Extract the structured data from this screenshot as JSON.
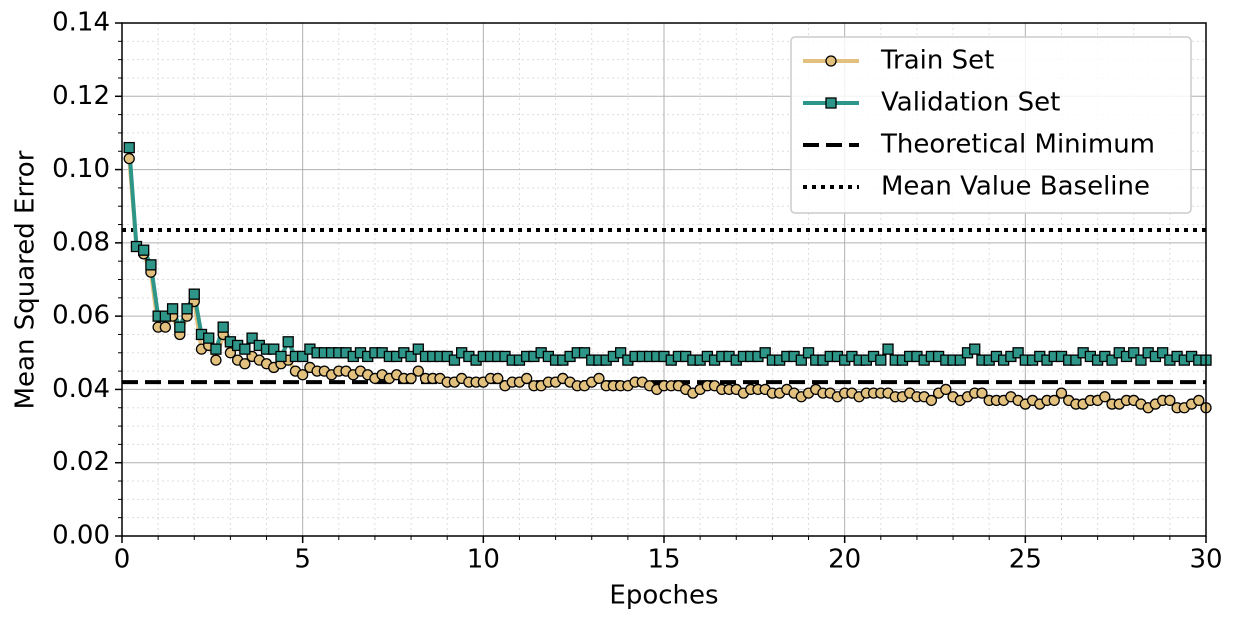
{
  "chart_data": {
    "type": "line",
    "xlabel": "Epoches",
    "ylabel": "Mean Squared Error",
    "x": [
      0.2,
      0.4,
      0.6,
      0.8,
      1.0,
      1.2,
      1.4,
      1.6,
      1.8,
      2.0,
      2.2,
      2.4,
      2.6,
      2.8,
      3.0,
      3.2,
      3.4,
      3.6,
      3.8,
      4.0,
      4.2,
      4.4,
      4.6,
      4.8,
      5.0,
      5.2,
      5.4,
      5.6,
      5.8,
      6.0,
      6.2,
      6.4,
      6.6,
      6.8,
      7.0,
      7.2,
      7.4,
      7.6,
      7.8,
      8.0,
      8.2,
      8.4,
      8.6,
      8.8,
      9.0,
      9.2,
      9.4,
      9.6,
      9.8,
      10.0,
      10.2,
      10.4,
      10.6,
      10.8,
      11.0,
      11.2,
      11.4,
      11.6,
      11.8,
      12.0,
      12.2,
      12.4,
      12.6,
      12.8,
      13.0,
      13.2,
      13.4,
      13.6,
      13.8,
      14.0,
      14.2,
      14.4,
      14.6,
      14.8,
      15.0,
      15.2,
      15.4,
      15.6,
      15.8,
      16.0,
      16.2,
      16.4,
      16.6,
      16.8,
      17.0,
      17.2,
      17.4,
      17.6,
      17.8,
      18.0,
      18.2,
      18.4,
      18.6,
      18.8,
      19.0,
      19.2,
      19.4,
      19.6,
      19.8,
      20.0,
      20.2,
      20.4,
      20.6,
      20.8,
      21.0,
      21.2,
      21.4,
      21.6,
      21.8,
      22.0,
      22.2,
      22.4,
      22.6,
      22.8,
      23.0,
      23.2,
      23.4,
      23.6,
      23.8,
      24.0,
      24.2,
      24.4,
      24.6,
      24.8,
      25.0,
      25.2,
      25.4,
      25.6,
      25.8,
      26.0,
      26.2,
      26.4,
      26.6,
      26.8,
      27.0,
      27.2,
      27.4,
      27.6,
      27.8,
      28.0,
      28.2,
      28.4,
      28.6,
      28.8,
      29.0,
      29.2,
      29.4,
      29.6,
      29.8,
      30.0
    ],
    "series": [
      {
        "name": "Train Set",
        "color": "#e2c07d",
        "marker": "circle",
        "values": [
          0.103,
          0.079,
          0.077,
          0.072,
          0.057,
          0.057,
          0.06,
          0.055,
          0.06,
          0.064,
          0.051,
          0.052,
          0.048,
          0.055,
          0.05,
          0.048,
          0.047,
          0.049,
          0.048,
          0.047,
          0.046,
          0.047,
          0.048,
          0.045,
          0.044,
          0.046,
          0.045,
          0.045,
          0.044,
          0.045,
          0.045,
          0.044,
          0.045,
          0.044,
          0.043,
          0.044,
          0.043,
          0.044,
          0.043,
          0.043,
          0.045,
          0.043,
          0.043,
          0.043,
          0.042,
          0.042,
          0.043,
          0.042,
          0.042,
          0.042,
          0.043,
          0.043,
          0.041,
          0.042,
          0.042,
          0.043,
          0.041,
          0.041,
          0.042,
          0.042,
          0.043,
          0.042,
          0.041,
          0.041,
          0.042,
          0.043,
          0.041,
          0.041,
          0.041,
          0.041,
          0.042,
          0.042,
          0.041,
          0.04,
          0.041,
          0.041,
          0.041,
          0.04,
          0.039,
          0.04,
          0.041,
          0.041,
          0.04,
          0.04,
          0.04,
          0.039,
          0.04,
          0.04,
          0.04,
          0.039,
          0.039,
          0.04,
          0.039,
          0.038,
          0.039,
          0.04,
          0.039,
          0.039,
          0.038,
          0.039,
          0.039,
          0.038,
          0.039,
          0.039,
          0.039,
          0.039,
          0.038,
          0.038,
          0.039,
          0.038,
          0.038,
          0.037,
          0.039,
          0.04,
          0.038,
          0.037,
          0.038,
          0.039,
          0.039,
          0.037,
          0.037,
          0.037,
          0.038,
          0.037,
          0.036,
          0.037,
          0.036,
          0.037,
          0.037,
          0.039,
          0.037,
          0.036,
          0.036,
          0.037,
          0.037,
          0.038,
          0.036,
          0.036,
          0.037,
          0.037,
          0.036,
          0.035,
          0.036,
          0.037,
          0.037,
          0.035,
          0.035,
          0.036,
          0.037,
          0.035
        ]
      },
      {
        "name": "Validation Set",
        "color": "#2e9688",
        "marker": "square",
        "values": [
          0.106,
          0.079,
          0.078,
          0.074,
          0.06,
          0.06,
          0.062,
          0.057,
          0.062,
          0.066,
          0.055,
          0.054,
          0.051,
          0.057,
          0.053,
          0.052,
          0.051,
          0.054,
          0.052,
          0.051,
          0.051,
          0.049,
          0.053,
          0.049,
          0.049,
          0.051,
          0.05,
          0.05,
          0.05,
          0.05,
          0.05,
          0.049,
          0.05,
          0.049,
          0.05,
          0.05,
          0.049,
          0.049,
          0.05,
          0.049,
          0.051,
          0.049,
          0.049,
          0.049,
          0.049,
          0.048,
          0.05,
          0.049,
          0.048,
          0.049,
          0.049,
          0.049,
          0.049,
          0.048,
          0.048,
          0.049,
          0.049,
          0.05,
          0.049,
          0.048,
          0.048,
          0.049,
          0.05,
          0.05,
          0.048,
          0.048,
          0.048,
          0.049,
          0.05,
          0.048,
          0.049,
          0.049,
          0.049,
          0.049,
          0.049,
          0.048,
          0.049,
          0.049,
          0.048,
          0.048,
          0.049,
          0.048,
          0.049,
          0.049,
          0.048,
          0.049,
          0.049,
          0.049,
          0.05,
          0.048,
          0.048,
          0.049,
          0.049,
          0.048,
          0.05,
          0.048,
          0.048,
          0.049,
          0.049,
          0.048,
          0.049,
          0.048,
          0.048,
          0.049,
          0.048,
          0.051,
          0.048,
          0.048,
          0.049,
          0.049,
          0.048,
          0.049,
          0.049,
          0.048,
          0.048,
          0.048,
          0.05,
          0.051,
          0.048,
          0.048,
          0.049,
          0.048,
          0.049,
          0.05,
          0.048,
          0.048,
          0.049,
          0.048,
          0.049,
          0.049,
          0.048,
          0.048,
          0.05,
          0.049,
          0.048,
          0.049,
          0.048,
          0.05,
          0.049,
          0.05,
          0.048,
          0.05,
          0.049,
          0.05,
          0.048,
          0.049,
          0.048,
          0.049,
          0.048,
          0.048
        ]
      }
    ],
    "reference_lines": [
      {
        "name": "Theoretical Minimum",
        "value": 0.042,
        "color": "#000000",
        "style": "dashed"
      },
      {
        "name": "Mean Value Baseline",
        "value": 0.0835,
        "color": "#000000",
        "style": "dotted"
      }
    ],
    "xlim": [
      0,
      30
    ],
    "xticks": [
      0,
      5,
      10,
      15,
      20,
      25,
      30
    ],
    "ylim": [
      0,
      0.14
    ],
    "yticks": [
      {
        "value": 0,
        "label": "0.00"
      },
      0.02,
      0.04,
      0.06,
      0.08,
      {
        "value": 0.1,
        "label": "0.10"
      },
      0.12,
      0.14
    ],
    "grid": true,
    "minor_grid": true,
    "legend_loc": "upper right"
  }
}
